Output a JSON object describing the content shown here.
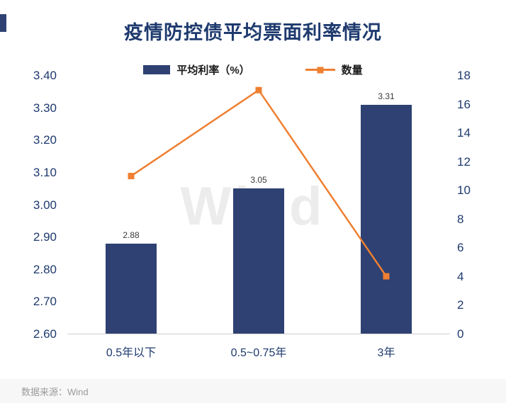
{
  "title": "疫情防控债平均票面利率情况",
  "legend": [
    {
      "label": "平均利率（%）",
      "color": "#2e4172",
      "type": "bar"
    },
    {
      "label": "数量",
      "color": "#ef7f31",
      "type": "line"
    }
  ],
  "watermark": "Wind",
  "footer": {
    "source": "数据来源：Wind"
  },
  "chart_data": {
    "type": "bar",
    "subtype": "bar-and-line-dual-axis",
    "title": "疫情防控债平均票面利率情况",
    "categories": [
      "0.5年以下",
      "0.5~0.75年",
      "3年"
    ],
    "series": [
      {
        "name": "平均利率（%）",
        "type": "bar",
        "axis": "left",
        "values": [
          2.88,
          3.05,
          3.31
        ],
        "color": "#2e4172"
      },
      {
        "name": "数量",
        "type": "line",
        "axis": "right",
        "values": [
          11,
          17,
          4
        ],
        "color": "#ef7f31"
      }
    ],
    "bar_labels": [
      "2.88",
      "3.05",
      "3.31"
    ],
    "left_axis": {
      "min": 2.6,
      "max": 3.4,
      "step": 0.1,
      "ticks": [
        "3.40",
        "3.30",
        "3.20",
        "3.10",
        "3.00",
        "2.90",
        "2.80",
        "2.70",
        "2.60"
      ]
    },
    "right_axis": {
      "min": 0,
      "max": 18,
      "step": 2,
      "ticks": [
        "18",
        "16",
        "14",
        "12",
        "10",
        "8",
        "6",
        "4",
        "2",
        "0"
      ]
    },
    "grid": false,
    "legend_position": "top-center"
  }
}
